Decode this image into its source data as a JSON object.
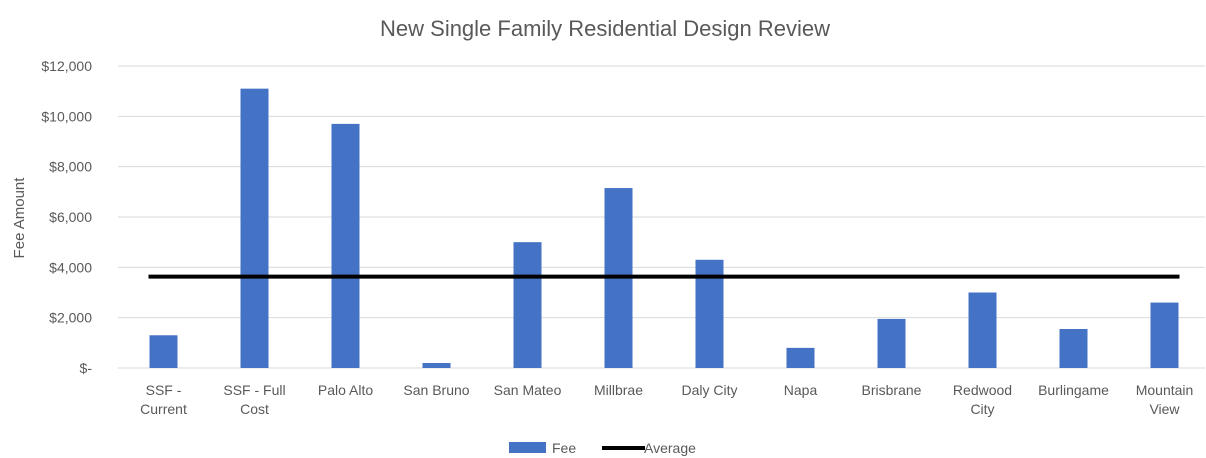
{
  "chart_data": {
    "type": "bar",
    "title": "New Single Family Residential Design Review",
    "xlabel": "",
    "ylabel": "Fee Amount",
    "ylim": [
      0,
      12000
    ],
    "yticks": [
      0,
      2000,
      4000,
      6000,
      8000,
      10000,
      12000
    ],
    "ytick_labels": [
      "$-",
      "$2,000",
      "$4,000",
      "$6,000",
      "$8,000",
      "$10,000",
      "$12,000"
    ],
    "categories": [
      [
        "SSF -",
        "Current"
      ],
      [
        "SSF - Full",
        "Cost"
      ],
      [
        "Palo Alto"
      ],
      [
        "San Bruno"
      ],
      [
        "San Mateo"
      ],
      [
        "Millbrae"
      ],
      [
        "Daly City"
      ],
      [
        "Napa"
      ],
      [
        "Brisbrane"
      ],
      [
        "Redwood",
        "City"
      ],
      [
        "Burlingame"
      ],
      [
        "Mountain",
        "View"
      ]
    ],
    "series": [
      {
        "name": "Fee",
        "kind": "bar",
        "color": "#4472c4",
        "values": [
          1300,
          11100,
          9700,
          200,
          5000,
          7150,
          4300,
          800,
          1950,
          3000,
          1550,
          2600
        ]
      },
      {
        "name": "Average",
        "kind": "line",
        "color": "#000000",
        "value": 3630
      }
    ],
    "grid": true,
    "legend_position": "bottom"
  }
}
